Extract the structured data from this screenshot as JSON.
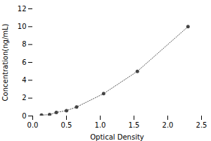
{
  "chart_data": {
    "type": "line",
    "x": [
      0.13,
      0.25,
      0.35,
      0.5,
      0.65,
      1.05,
      1.55,
      2.3
    ],
    "values": [
      0.1,
      0.15,
      0.4,
      0.6,
      1.0,
      2.5,
      5.0,
      10.0
    ],
    "xlabel": "Optical Density",
    "ylabel": "Concentration(ng/mL)",
    "xlim": [
      0,
      2.5
    ],
    "ylim": [
      0,
      12
    ],
    "xticks": [
      {
        "value": 0,
        "label": "0.0"
      },
      0.5,
      {
        "value": 1.0,
        "label": "1.0"
      },
      1.5,
      {
        "value": 2.0,
        "label": "2.0"
      },
      2.5
    ],
    "yticks": [
      0,
      2,
      4,
      6,
      8,
      10,
      12
    ],
    "color": "#444444",
    "marker": "dot",
    "line_style": "dotted",
    "grid": false
  }
}
